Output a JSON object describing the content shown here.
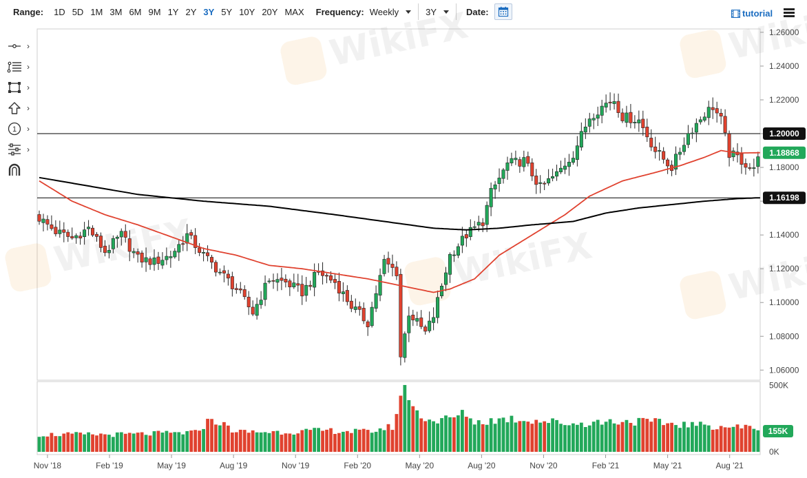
{
  "toolbar": {
    "range_label": "Range:",
    "ranges": [
      "1D",
      "5D",
      "1M",
      "3M",
      "6M",
      "9M",
      "1Y",
      "2Y",
      "3Y",
      "5Y",
      "10Y",
      "20Y",
      "MAX"
    ],
    "active_range": "3Y",
    "frequency_label": "Frequency:",
    "frequency_value": "Weekly",
    "period_value": "3Y",
    "date_label": "Date:",
    "tutorial_label": "tutorial"
  },
  "side_tools": [
    "crosshair-tool-icon",
    "fib-retracement-icon",
    "rectangle-tool-icon",
    "arrow-up-icon",
    "number-one-icon",
    "settings-sliders-icon",
    "magnet-icon"
  ],
  "chart_data": {
    "type": "candlestick",
    "frequency": "weekly",
    "x_labels": [
      "Nov '18",
      "Feb '19",
      "May '19",
      "Aug '19",
      "Nov '19",
      "Feb '20",
      "May '20",
      "Aug '20",
      "Nov '20",
      "Feb '21",
      "May '21",
      "Aug '21"
    ],
    "y_ticks": [
      "1.26000",
      "1.24000",
      "1.22000",
      "1.20000",
      "1.18000",
      "1.16000",
      "1.14000",
      "1.12000",
      "1.10000",
      "1.08000",
      "1.06000"
    ],
    "ylim": [
      1.054,
      1.262
    ],
    "horizontal_lines": [
      {
        "value": 1.2,
        "label": "1.20000",
        "color": "#000000"
      },
      {
        "value": 1.16198,
        "label": "1.16198",
        "color": "#000000"
      }
    ],
    "last_price": {
      "value": 1.18868,
      "label": "1.18868",
      "color": "#22a85a"
    },
    "colors": {
      "up": "#22a85a",
      "down": "#e0422f",
      "ma_fast": "#e0422f",
      "ma_slow": "#000000"
    },
    "close_anchors": [
      [
        0,
        1.15
      ],
      [
        4,
        1.142
      ],
      [
        8,
        1.138
      ],
      [
        12,
        1.144
      ],
      [
        16,
        1.13
      ],
      [
        20,
        1.14
      ],
      [
        24,
        1.126
      ],
      [
        28,
        1.124
      ],
      [
        32,
        1.128
      ],
      [
        36,
        1.14
      ],
      [
        40,
        1.128
      ],
      [
        44,
        1.118
      ],
      [
        48,
        1.108
      ],
      [
        52,
        1.094
      ],
      [
        56,
        1.114
      ],
      [
        60,
        1.112
      ],
      [
        64,
        1.106
      ],
      [
        68,
        1.118
      ],
      [
        72,
        1.112
      ],
      [
        76,
        1.098
      ],
      [
        80,
        1.088
      ],
      [
        84,
        1.124
      ],
      [
        87,
        1.118
      ],
      [
        88,
        1.068
      ],
      [
        90,
        1.094
      ],
      [
        94,
        1.082
      ],
      [
        96,
        1.092
      ],
      [
        100,
        1.128
      ],
      [
        104,
        1.14
      ],
      [
        108,
        1.148
      ],
      [
        110,
        1.165
      ],
      [
        114,
        1.182
      ],
      [
        118,
        1.184
      ],
      [
        122,
        1.168
      ],
      [
        126,
        1.176
      ],
      [
        130,
        1.188
      ],
      [
        134,
        1.21
      ],
      [
        138,
        1.218
      ],
      [
        140,
        1.22
      ],
      [
        142,
        1.21
      ],
      [
        146,
        1.208
      ],
      [
        150,
        1.19
      ],
      [
        154,
        1.18
      ],
      [
        158,
        1.2
      ],
      [
        162,
        1.212
      ],
      [
        164,
        1.216
      ],
      [
        166,
        1.208
      ],
      [
        168,
        1.188
      ],
      [
        170,
        1.186
      ],
      [
        172,
        1.182
      ],
      [
        174,
        1.178
      ],
      [
        175,
        1.1887
      ]
    ],
    "ma_fast": [
      [
        0,
        1.172
      ],
      [
        8,
        1.16
      ],
      [
        16,
        1.152
      ],
      [
        24,
        1.146
      ],
      [
        32,
        1.139
      ],
      [
        40,
        1.132
      ],
      [
        48,
        1.128
      ],
      [
        56,
        1.122
      ],
      [
        64,
        1.12
      ],
      [
        72,
        1.117
      ],
      [
        80,
        1.114
      ],
      [
        88,
        1.11
      ],
      [
        96,
        1.106
      ],
      [
        100,
        1.108
      ],
      [
        106,
        1.114
      ],
      [
        112,
        1.128
      ],
      [
        120,
        1.14
      ],
      [
        128,
        1.152
      ],
      [
        134,
        1.163
      ],
      [
        142,
        1.172
      ],
      [
        150,
        1.177
      ],
      [
        156,
        1.181
      ],
      [
        162,
        1.186
      ],
      [
        166,
        1.19
      ],
      [
        170,
        1.1885
      ],
      [
        175,
        1.1887
      ]
    ],
    "ma_slow": [
      [
        0,
        1.174
      ],
      [
        12,
        1.169
      ],
      [
        24,
        1.164
      ],
      [
        40,
        1.16
      ],
      [
        56,
        1.157
      ],
      [
        72,
        1.152
      ],
      [
        84,
        1.148
      ],
      [
        96,
        1.144
      ],
      [
        104,
        1.143
      ],
      [
        112,
        1.144
      ],
      [
        120,
        1.146
      ],
      [
        130,
        1.148
      ],
      [
        138,
        1.153
      ],
      [
        146,
        1.156
      ],
      [
        154,
        1.158
      ],
      [
        162,
        1.16
      ],
      [
        170,
        1.1615
      ],
      [
        175,
        1.162
      ]
    ],
    "volume": {
      "ticks": [
        "500K",
        "0K"
      ],
      "ylim": [
        0,
        600
      ],
      "last_label": "155K",
      "anchors": [
        [
          0,
          130
        ],
        [
          20,
          130
        ],
        [
          38,
          145
        ],
        [
          42,
          250
        ],
        [
          48,
          150
        ],
        [
          60,
          150
        ],
        [
          70,
          160
        ],
        [
          80,
          150
        ],
        [
          86,
          190
        ],
        [
          88,
          380
        ],
        [
          89,
          560
        ],
        [
          90,
          400
        ],
        [
          92,
          290
        ],
        [
          96,
          230
        ],
        [
          100,
          250
        ],
        [
          104,
          290
        ],
        [
          106,
          220
        ],
        [
          114,
          250
        ],
        [
          120,
          240
        ],
        [
          130,
          210
        ],
        [
          140,
          230
        ],
        [
          145,
          230
        ],
        [
          150,
          220
        ],
        [
          160,
          200
        ],
        [
          175,
          180
        ]
      ]
    }
  }
}
